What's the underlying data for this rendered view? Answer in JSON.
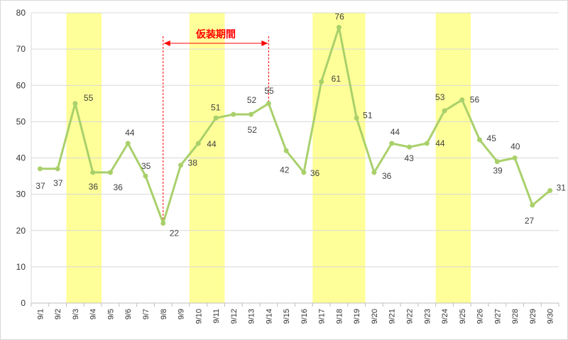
{
  "chart_data": {
    "type": "line",
    "categories": [
      "9/1",
      "9/2",
      "9/3",
      "9/4",
      "9/5",
      "9/6",
      "9/7",
      "9/8",
      "9/9",
      "9/10",
      "9/11",
      "9/12",
      "9/13",
      "9/14",
      "9/15",
      "9/16",
      "9/17",
      "9/18",
      "9/19",
      "9/20",
      "9/21",
      "9/22",
      "9/23",
      "9/24",
      "9/25",
      "9/26",
      "9/27",
      "9/28",
      "9/29",
      "9/30"
    ],
    "series": [
      {
        "values": [
          37,
          37,
          55,
          36,
          36,
          44,
          35,
          22,
          38,
          44,
          51,
          52,
          52,
          55,
          42,
          36,
          61,
          76,
          51,
          36,
          44,
          43,
          44,
          53,
          56,
          45,
          39,
          40,
          27,
          31
        ],
        "color": "#a9d06b"
      }
    ],
    "title": "",
    "xlabel": "",
    "ylabel": "",
    "ylim": [
      0,
      80
    ],
    "y_ticks": [
      "0",
      "10",
      "20",
      "30",
      "40",
      "50",
      "60",
      "70",
      "80"
    ],
    "grid": true,
    "legend": "none",
    "highlight_bands": [
      {
        "from": "9/3",
        "to": "9/4",
        "color": "#ffff99"
      },
      {
        "from": "9/10",
        "to": "9/11",
        "color": "#ffff99"
      },
      {
        "from": "9/17",
        "to": "9/19",
        "color": "#ffff99"
      },
      {
        "from": "9/24",
        "to": "9/25",
        "color": "#ffff99"
      }
    ],
    "annotation": {
      "label": "仮装期間",
      "from": "9/8",
      "to": "9/14",
      "color": "#ff0000"
    }
  }
}
